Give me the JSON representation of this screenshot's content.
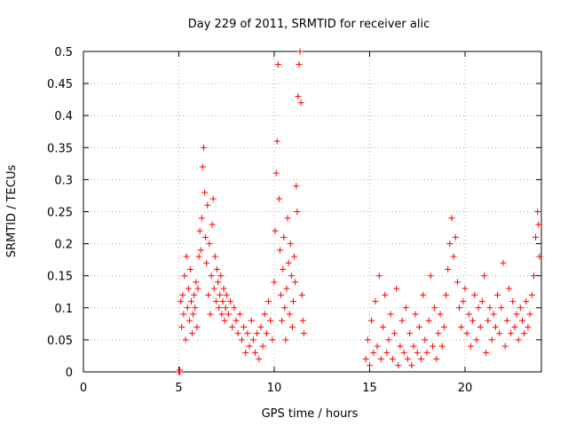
{
  "chart_data": {
    "type": "scatter",
    "title": "Day 229 of 2011, SRMTID for receiver alic",
    "xlabel": "GPS time / hours",
    "ylabel": "SRMTID / TECUs",
    "xlim": [
      0,
      24
    ],
    "ylim": [
      0,
      0.5
    ],
    "x_ticks": [
      0,
      5,
      10,
      15,
      20
    ],
    "y_ticks": [
      0,
      0.05,
      0.1,
      0.15,
      0.2,
      0.25,
      0.3,
      0.35,
      0.4,
      0.45,
      0.5
    ],
    "x_tick_labels": [
      "0",
      "5",
      "10",
      "15",
      "20"
    ],
    "y_tick_labels": [
      "0",
      "0.05",
      "0.1",
      "0.15",
      "0.2",
      "0.25",
      "0.3",
      "0.35",
      "0.4",
      "0.45",
      "0.5"
    ],
    "grid": true,
    "marker": "plus",
    "color": "#ff0000",
    "points": [
      [
        5.0,
        0.0
      ],
      [
        5.05,
        0.0
      ],
      [
        5.05,
        0.003
      ],
      [
        5.1,
        0.11
      ],
      [
        5.15,
        0.07
      ],
      [
        5.2,
        0.12
      ],
      [
        5.25,
        0.09
      ],
      [
        5.3,
        0.15
      ],
      [
        5.35,
        0.05
      ],
      [
        5.4,
        0.18
      ],
      [
        5.45,
        0.1
      ],
      [
        5.5,
        0.13
      ],
      [
        5.55,
        0.08
      ],
      [
        5.6,
        0.16
      ],
      [
        5.65,
        0.11
      ],
      [
        5.7,
        0.06
      ],
      [
        5.75,
        0.09
      ],
      [
        5.8,
        0.12
      ],
      [
        5.85,
        0.1
      ],
      [
        5.9,
        0.14
      ],
      [
        5.95,
        0.07
      ],
      [
        6.0,
        0.13
      ],
      [
        6.05,
        0.18
      ],
      [
        6.1,
        0.22
      ],
      [
        6.15,
        0.19
      ],
      [
        6.2,
        0.24
      ],
      [
        6.25,
        0.32
      ],
      [
        6.3,
        0.35
      ],
      [
        6.35,
        0.28
      ],
      [
        6.4,
        0.21
      ],
      [
        6.45,
        0.17
      ],
      [
        6.5,
        0.26
      ],
      [
        6.55,
        0.12
      ],
      [
        6.6,
        0.2
      ],
      [
        6.65,
        0.09
      ],
      [
        6.7,
        0.15
      ],
      [
        6.75,
        0.23
      ],
      [
        6.8,
        0.27
      ],
      [
        6.85,
        0.13
      ],
      [
        6.9,
        0.18
      ],
      [
        6.95,
        0.11
      ],
      [
        7.0,
        0.16
      ],
      [
        7.05,
        0.14
      ],
      [
        7.1,
        0.1
      ],
      [
        7.15,
        0.12
      ],
      [
        7.2,
        0.15
      ],
      [
        7.25,
        0.09
      ],
      [
        7.3,
        0.11
      ],
      [
        7.35,
        0.13
      ],
      [
        7.4,
        0.08
      ],
      [
        7.45,
        0.1
      ],
      [
        7.5,
        0.12
      ],
      [
        7.6,
        0.09
      ],
      [
        7.7,
        0.11
      ],
      [
        7.8,
        0.07
      ],
      [
        7.9,
        0.1
      ],
      [
        8.0,
        0.08
      ],
      [
        8.1,
        0.06
      ],
      [
        8.2,
        0.09
      ],
      [
        8.3,
        0.05
      ],
      [
        8.4,
        0.07
      ],
      [
        8.5,
        0.03
      ],
      [
        8.6,
        0.06
      ],
      [
        8.7,
        0.04
      ],
      [
        8.8,
        0.08
      ],
      [
        8.9,
        0.05
      ],
      [
        9.0,
        0.03
      ],
      [
        9.1,
        0.06
      ],
      [
        9.2,
        0.02
      ],
      [
        9.3,
        0.07
      ],
      [
        9.4,
        0.04
      ],
      [
        9.5,
        0.09
      ],
      [
        9.6,
        0.06
      ],
      [
        9.7,
        0.11
      ],
      [
        9.8,
        0.08
      ],
      [
        9.9,
        0.05
      ],
      [
        10.0,
        0.14
      ],
      [
        10.05,
        0.22
      ],
      [
        10.1,
        0.31
      ],
      [
        10.15,
        0.36
      ],
      [
        10.2,
        0.48
      ],
      [
        10.25,
        0.27
      ],
      [
        10.3,
        0.19
      ],
      [
        10.35,
        0.12
      ],
      [
        10.4,
        0.08
      ],
      [
        10.45,
        0.16
      ],
      [
        10.5,
        0.21
      ],
      [
        10.55,
        0.1
      ],
      [
        10.6,
        0.05
      ],
      [
        10.65,
        0.13
      ],
      [
        10.7,
        0.24
      ],
      [
        10.75,
        0.17
      ],
      [
        10.8,
        0.09
      ],
      [
        10.85,
        0.2
      ],
      [
        10.9,
        0.15
      ],
      [
        10.95,
        0.07
      ],
      [
        11.0,
        0.11
      ],
      [
        11.05,
        0.18
      ],
      [
        11.1,
        0.14
      ],
      [
        11.15,
        0.29
      ],
      [
        11.2,
        0.25
      ],
      [
        11.25,
        0.43
      ],
      [
        11.3,
        0.48
      ],
      [
        11.35,
        0.5
      ],
      [
        11.4,
        0.42
      ],
      [
        11.45,
        0.12
      ],
      [
        11.5,
        0.08
      ],
      [
        11.55,
        0.06
      ],
      [
        14.8,
        0.02
      ],
      [
        14.9,
        0.05
      ],
      [
        15.0,
        0.01
      ],
      [
        15.1,
        0.08
      ],
      [
        15.2,
        0.03
      ],
      [
        15.3,
        0.11
      ],
      [
        15.4,
        0.04
      ],
      [
        15.5,
        0.15
      ],
      [
        15.6,
        0.02
      ],
      [
        15.7,
        0.07
      ],
      [
        15.8,
        0.12
      ],
      [
        15.9,
        0.03
      ],
      [
        16.0,
        0.05
      ],
      [
        16.1,
        0.09
      ],
      [
        16.2,
        0.02
      ],
      [
        16.3,
        0.06
      ],
      [
        16.4,
        0.13
      ],
      [
        16.5,
        0.01
      ],
      [
        16.6,
        0.04
      ],
      [
        16.7,
        0.08
      ],
      [
        16.8,
        0.03
      ],
      [
        16.9,
        0.1
      ],
      [
        17.0,
        0.02
      ],
      [
        17.1,
        0.06
      ],
      [
        17.2,
        0.01
      ],
      [
        17.3,
        0.04
      ],
      [
        17.4,
        0.09
      ],
      [
        17.5,
        0.03
      ],
      [
        17.6,
        0.07
      ],
      [
        17.7,
        0.02
      ],
      [
        17.8,
        0.12
      ],
      [
        17.9,
        0.05
      ],
      [
        18.0,
        0.03
      ],
      [
        18.1,
        0.08
      ],
      [
        18.2,
        0.15
      ],
      [
        18.3,
        0.04
      ],
      [
        18.4,
        0.1
      ],
      [
        18.5,
        0.02
      ],
      [
        18.6,
        0.06
      ],
      [
        18.7,
        0.09
      ],
      [
        18.8,
        0.04
      ],
      [
        18.9,
        0.07
      ],
      [
        19.0,
        0.12
      ],
      [
        19.1,
        0.16
      ],
      [
        19.2,
        0.2
      ],
      [
        19.3,
        0.24
      ],
      [
        19.4,
        0.18
      ],
      [
        19.5,
        0.21
      ],
      [
        19.6,
        0.14
      ],
      [
        19.7,
        0.1
      ],
      [
        19.8,
        0.07
      ],
      [
        19.9,
        0.11
      ],
      [
        20.0,
        0.13
      ],
      [
        20.1,
        0.06
      ],
      [
        20.2,
        0.09
      ],
      [
        20.3,
        0.04
      ],
      [
        20.4,
        0.08
      ],
      [
        20.5,
        0.12
      ],
      [
        20.6,
        0.05
      ],
      [
        20.7,
        0.1
      ],
      [
        20.8,
        0.07
      ],
      [
        20.9,
        0.11
      ],
      [
        21.0,
        0.15
      ],
      [
        21.1,
        0.03
      ],
      [
        21.2,
        0.08
      ],
      [
        21.3,
        0.1
      ],
      [
        21.4,
        0.05
      ],
      [
        21.5,
        0.09
      ],
      [
        21.6,
        0.07
      ],
      [
        21.7,
        0.12
      ],
      [
        21.8,
        0.06
      ],
      [
        21.9,
        0.1
      ],
      [
        22.0,
        0.17
      ],
      [
        22.1,
        0.04
      ],
      [
        22.2,
        0.08
      ],
      [
        22.3,
        0.13
      ],
      [
        22.4,
        0.06
      ],
      [
        22.5,
        0.11
      ],
      [
        22.6,
        0.07
      ],
      [
        22.7,
        0.09
      ],
      [
        22.8,
        0.05
      ],
      [
        22.9,
        0.1
      ],
      [
        23.0,
        0.08
      ],
      [
        23.1,
        0.06
      ],
      [
        23.2,
        0.11
      ],
      [
        23.3,
        0.07
      ],
      [
        23.4,
        0.09
      ],
      [
        23.5,
        0.12
      ],
      [
        23.6,
        0.15
      ],
      [
        23.7,
        0.21
      ],
      [
        23.8,
        0.25
      ],
      [
        23.85,
        0.23
      ],
      [
        23.9,
        0.18
      ]
    ]
  }
}
